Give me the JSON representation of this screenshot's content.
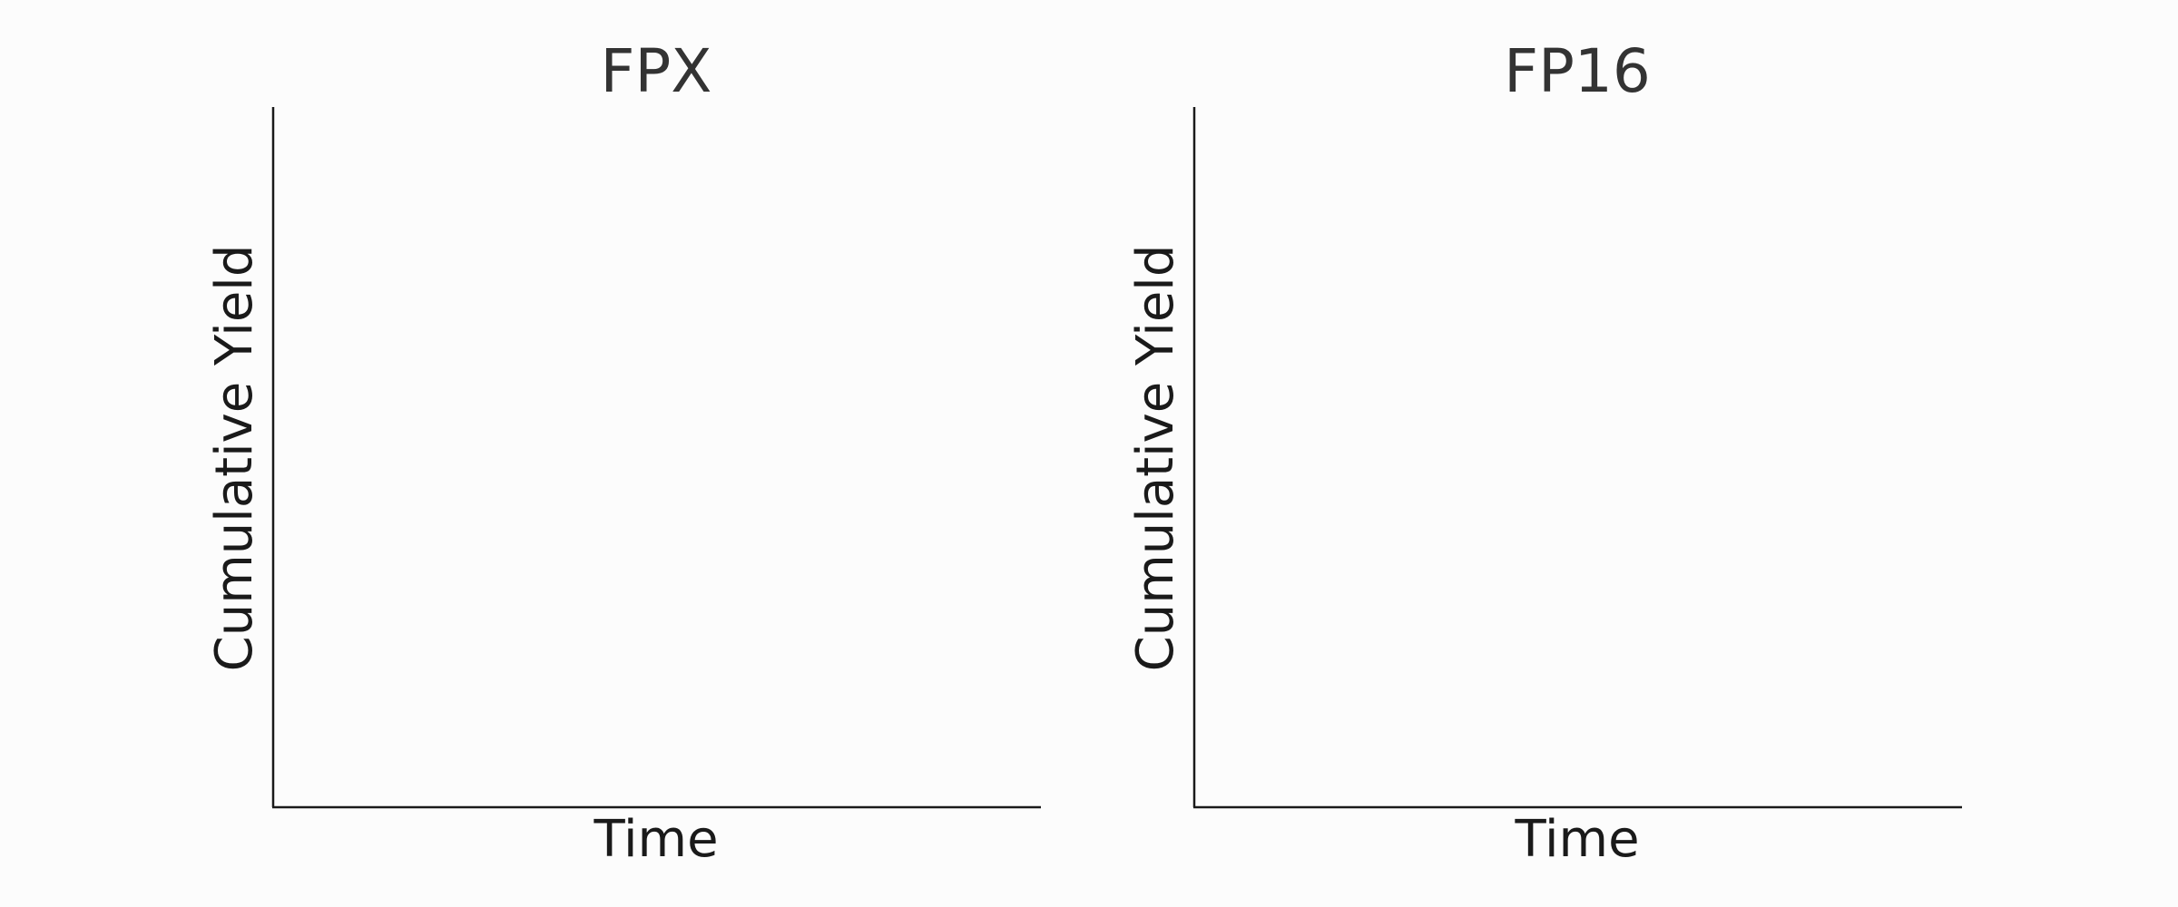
{
  "chart_data": [
    {
      "type": "line",
      "title": "FPX",
      "xlabel": "Time",
      "ylabel": "Cumulative Yield",
      "series": [],
      "grid": false,
      "legend": "none",
      "xticks": [],
      "yticks": []
    },
    {
      "type": "line",
      "title": "FP16",
      "xlabel": "Time",
      "ylabel": "Cumulative Yield",
      "series": [],
      "grid": false,
      "legend": "none",
      "xticks": [],
      "yticks": []
    }
  ],
  "colors": {
    "background": "#fcfcfc",
    "title_text": "#333333",
    "axis": "#1a1a1a"
  }
}
